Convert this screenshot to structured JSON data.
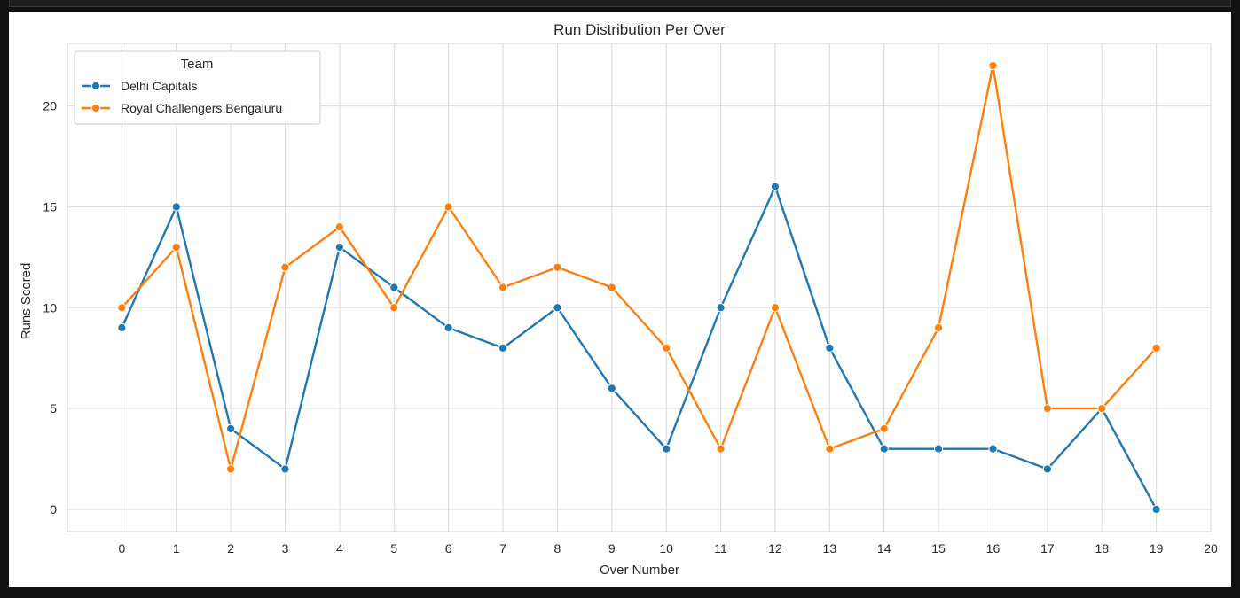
{
  "chart_data": {
    "type": "line",
    "title": "Run Distribution Per Over",
    "xlabel": "Over Number",
    "ylabel": "Runs Scored",
    "xlim": [
      -1,
      20
    ],
    "ylim": [
      -1.1,
      23.1
    ],
    "xticks": [
      0,
      1,
      2,
      3,
      4,
      5,
      6,
      7,
      8,
      9,
      10,
      11,
      12,
      13,
      14,
      15,
      16,
      17,
      18,
      19,
      20
    ],
    "yticks": [
      0,
      5,
      10,
      15,
      20
    ],
    "grid": true,
    "legend": {
      "title": "Team",
      "placement": "top-left"
    },
    "x": [
      0,
      1,
      2,
      3,
      4,
      5,
      6,
      7,
      8,
      9,
      10,
      11,
      12,
      13,
      14,
      15,
      16,
      17,
      18,
      19
    ],
    "series": [
      {
        "name": "Delhi Capitals",
        "color": "#1f77b4",
        "values": [
          9,
          15,
          4,
          2,
          13,
          11,
          9,
          8,
          10,
          6,
          3,
          10,
          16,
          8,
          3,
          3,
          3,
          2,
          5,
          0
        ]
      },
      {
        "name": "Royal Challengers Bengaluru",
        "color": "#ff7f0e",
        "values": [
          10,
          13,
          2,
          12,
          14,
          10,
          15,
          11,
          12,
          11,
          8,
          3,
          10,
          3,
          4,
          9,
          22,
          5,
          5,
          8
        ]
      }
    ]
  }
}
